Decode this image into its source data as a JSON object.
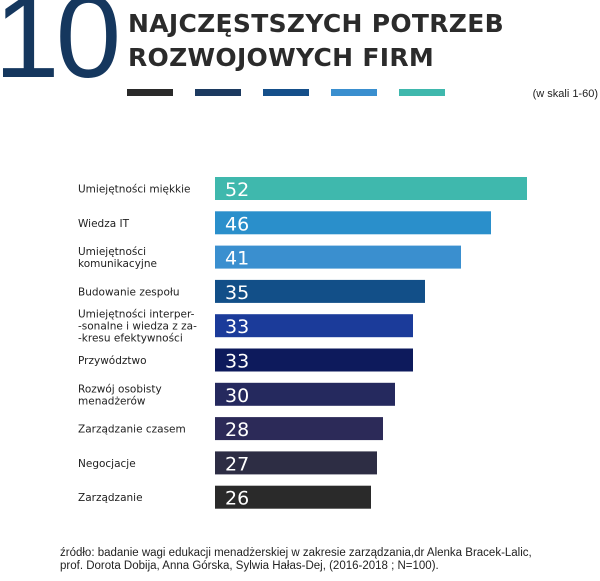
{
  "header": {
    "number": "10",
    "title_line1": "NAJCZĘSTSZYCH POTRZEB",
    "title_line2": "ROZWOJOWYCH FIRM",
    "scale_note": "(w skali 1-60)",
    "swatch_colors": [
      "#2a2a2a",
      "#1c3a60",
      "#154f8a",
      "#3a8fcf",
      "#3fb8ad"
    ]
  },
  "chart_data": {
    "type": "bar",
    "orientation": "horizontal",
    "categories": [
      [
        "Umiejętności miękkie"
      ],
      [
        "Wiedza IT"
      ],
      [
        "Umiejętności",
        "komunikacyjne"
      ],
      [
        "Budowanie zespołu"
      ],
      [
        "Umiejętności  interper-",
        "-sonalne i wiedza z za-",
        "-kresu efektywności"
      ],
      [
        "Przywództwo"
      ],
      [
        "Rozwój osobisty",
        "menadżerów"
      ],
      [
        "Zarządzanie czasem"
      ],
      [
        "Negocjacje"
      ],
      [
        "Zarządzanie"
      ]
    ],
    "values": [
      52,
      46,
      41,
      35,
      33,
      33,
      30,
      28,
      27,
      26
    ],
    "colors": [
      "#3fb8ad",
      "#2a8fcb",
      "#3a8fcf",
      "#124f88",
      "#1b3b9a",
      "#0d1a5c",
      "#25295e",
      "#2c2a58",
      "#2d2d44",
      "#2a2a2a"
    ],
    "xlim": [
      0,
      60
    ],
    "grid": false,
    "legend": "none"
  },
  "footer": {
    "source_line1": "źródło: badanie wagi edukacji menadżerskiej w zakresie zarządzania,dr Alenka Bracek-Lalic,",
    "source_line2": "prof. Dorota Dobija, Anna Górska, Sylwia Hałas-Dej, (2016-2018 ; N=100)."
  }
}
